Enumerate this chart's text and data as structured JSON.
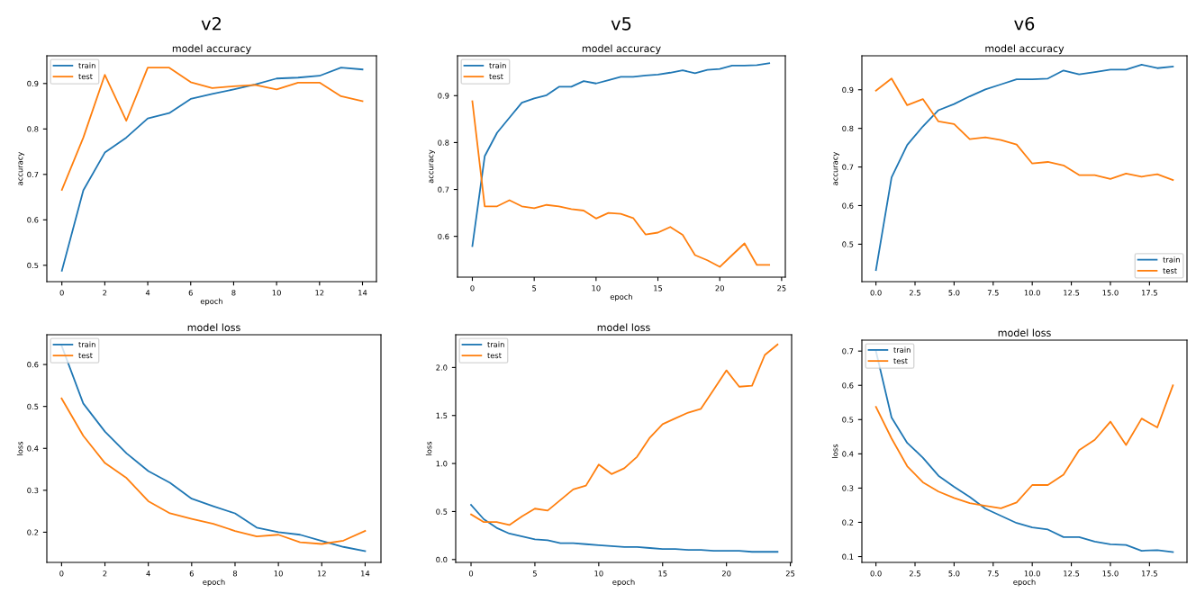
{
  "chart_data": [
    {
      "type": "line",
      "title": "v2",
      "subtitle": "model accuracy",
      "xlabel": "epoch",
      "ylabel": "accuracy",
      "x": [
        0,
        1,
        2,
        3,
        4,
        5,
        6,
        7,
        8,
        9,
        10,
        11,
        12,
        13,
        14
      ],
      "xlim": [
        -0.7,
        14.65
      ],
      "xticks": [
        0,
        2,
        4,
        6,
        8,
        10,
        12,
        14
      ],
      "ylim": [
        0.464,
        0.961
      ],
      "yticks": [
        0.5,
        0.6,
        0.7,
        0.8,
        0.9
      ],
      "legend": "upper left",
      "grid": false,
      "series": [
        {
          "name": "train",
          "color": "#1f77b4",
          "values": [
            0.488,
            0.665,
            0.748,
            0.781,
            0.823,
            0.835,
            0.866,
            0.877,
            0.887,
            0.898,
            0.911,
            0.913,
            0.917,
            0.935,
            0.931
          ]
        },
        {
          "name": "test",
          "color": "#ff7f0e",
          "values": [
            0.666,
            0.781,
            0.919,
            0.818,
            0.935,
            0.935,
            0.903,
            0.89,
            0.894,
            0.897,
            0.887,
            0.902,
            0.902,
            0.872,
            0.861
          ]
        }
      ]
    },
    {
      "type": "line",
      "title": "v5",
      "subtitle": "model accuracy",
      "xlabel": "epoch",
      "ylabel": "accuracy",
      "x": [
        0,
        1,
        2,
        3,
        4,
        5,
        6,
        7,
        8,
        9,
        10,
        11,
        12,
        13,
        14,
        15,
        16,
        17,
        18,
        19,
        20,
        21,
        22,
        23,
        24
      ],
      "xlim": [
        -1.2,
        25.3
      ],
      "xticks": [
        0,
        5,
        10,
        15,
        20,
        25
      ],
      "ylim": [
        0.513,
        0.985
      ],
      "yticks": [
        0.6,
        0.7,
        0.8,
        0.9
      ],
      "legend": "upper left",
      "grid": false,
      "series": [
        {
          "name": "train",
          "color": "#1f77b4",
          "values": [
            0.579,
            0.771,
            0.821,
            0.853,
            0.885,
            0.894,
            0.901,
            0.919,
            0.919,
            0.931,
            0.926,
            0.933,
            0.94,
            0.94,
            0.943,
            0.945,
            0.949,
            0.954,
            0.948,
            0.955,
            0.957,
            0.964,
            0.964,
            0.965,
            0.969
          ]
        },
        {
          "name": "test",
          "color": "#ff7f0e",
          "values": [
            0.888,
            0.664,
            0.664,
            0.677,
            0.664,
            0.66,
            0.667,
            0.664,
            0.658,
            0.655,
            0.638,
            0.65,
            0.648,
            0.639,
            0.604,
            0.608,
            0.62,
            0.603,
            0.56,
            0.549,
            0.535,
            0.56,
            0.585,
            0.539,
            0.539
          ]
        }
      ]
    },
    {
      "type": "line",
      "title": "v6",
      "subtitle": "model accuracy",
      "ylabel": "accuracy",
      "x": [
        0,
        1,
        2,
        3,
        4,
        5,
        6,
        7,
        8,
        9,
        10,
        11,
        12,
        13,
        14,
        15,
        16,
        17,
        18,
        19
      ],
      "xlim": [
        -0.9,
        19.9
      ],
      "xticks": [
        {
          "value": 0,
          "label": "0.0"
        },
        {
          "value": 2.5,
          "label": "2.5"
        },
        {
          "value": 5,
          "label": "5.0"
        },
        {
          "value": 7.5,
          "label": "7.5"
        },
        {
          "value": 10,
          "label": "10.0"
        },
        {
          "value": 12.5,
          "label": "12.5"
        },
        {
          "value": 15,
          "label": "15.0"
        },
        {
          "value": 17.5,
          "label": "17.5"
        }
      ],
      "ylim": [
        0.403,
        0.988
      ],
      "yticks": [
        0.5,
        0.6,
        0.7,
        0.8,
        0.9
      ],
      "legend": "lower right",
      "grid": false,
      "series": [
        {
          "name": "train",
          "color": "#1f77b4",
          "values": [
            0.433,
            0.673,
            0.757,
            0.805,
            0.847,
            0.863,
            0.883,
            0.901,
            0.914,
            0.927,
            0.927,
            0.929,
            0.95,
            0.94,
            0.946,
            0.952,
            0.952,
            0.965,
            0.956,
            0.96
          ]
        },
        {
          "name": "test",
          "color": "#ff7f0e",
          "values": [
            0.898,
            0.929,
            0.86,
            0.876,
            0.818,
            0.811,
            0.772,
            0.777,
            0.77,
            0.758,
            0.709,
            0.713,
            0.704,
            0.679,
            0.679,
            0.669,
            0.683,
            0.675,
            0.681,
            0.666
          ]
        }
      ]
    },
    {
      "type": "line",
      "subtitle": "model loss",
      "xlabel": "epoch",
      "ylabel": "loss",
      "x": [
        0,
        1,
        2,
        3,
        4,
        5,
        6,
        7,
        8,
        9,
        10,
        11,
        12,
        13,
        14
      ],
      "xlim": [
        -0.68,
        14.73
      ],
      "xticks": [
        0,
        2,
        4,
        6,
        8,
        10,
        12,
        14
      ],
      "ylim": [
        0.128,
        0.671
      ],
      "yticks": [
        0.2,
        0.3,
        0.4,
        0.5,
        0.6
      ],
      "legend": "upper left",
      "grid": false,
      "series": [
        {
          "name": "train",
          "color": "#1f77b4",
          "values": [
            0.645,
            0.507,
            0.44,
            0.388,
            0.346,
            0.318,
            0.28,
            0.262,
            0.245,
            0.211,
            0.2,
            0.194,
            0.179,
            0.165,
            0.155
          ]
        },
        {
          "name": "test",
          "color": "#ff7f0e",
          "values": [
            0.519,
            0.43,
            0.365,
            0.329,
            0.274,
            0.245,
            0.232,
            0.22,
            0.203,
            0.19,
            0.194,
            0.176,
            0.172,
            0.18,
            0.203
          ]
        }
      ]
    },
    {
      "type": "line",
      "subtitle": "model loss",
      "xlabel": "epoch",
      "ylabel": "loss",
      "x": [
        0,
        1,
        2,
        3,
        4,
        5,
        6,
        7,
        8,
        9,
        10,
        11,
        12,
        13,
        14,
        15,
        16,
        17,
        18,
        19,
        20,
        21,
        22,
        23,
        24
      ],
      "xlim": [
        -1.2,
        25.1
      ],
      "xticks": [
        0,
        5,
        10,
        15,
        20,
        25
      ],
      "ylim": [
        -0.03,
        2.341
      ],
      "yticks": [
        {
          "value": 0,
          "label": "0.0"
        },
        {
          "value": 0.5,
          "label": "0.5"
        },
        {
          "value": 1,
          "label": "1.0"
        },
        {
          "value": 1.5,
          "label": "1.5"
        },
        {
          "value": 2,
          "label": "2.0"
        }
      ],
      "legend": "upper left",
      "grid": false,
      "series": [
        {
          "name": "train",
          "color": "#1f77b4",
          "values": [
            0.57,
            0.42,
            0.33,
            0.27,
            0.24,
            0.21,
            0.2,
            0.17,
            0.17,
            0.16,
            0.15,
            0.14,
            0.13,
            0.13,
            0.12,
            0.11,
            0.11,
            0.1,
            0.1,
            0.09,
            0.09,
            0.09,
            0.08,
            0.08,
            0.08
          ]
        },
        {
          "name": "test",
          "color": "#ff7f0e",
          "values": [
            0.47,
            0.39,
            0.39,
            0.36,
            0.45,
            0.53,
            0.51,
            0.62,
            0.73,
            0.77,
            0.99,
            0.89,
            0.95,
            1.07,
            1.27,
            1.41,
            1.47,
            1.53,
            1.57,
            1.77,
            1.97,
            1.8,
            1.81,
            2.13,
            2.24
          ]
        }
      ]
    },
    {
      "type": "line",
      "subtitle": "model loss",
      "xlabel": "epoch",
      "ylabel": "loss",
      "x": [
        0,
        1,
        2,
        3,
        4,
        5,
        6,
        7,
        8,
        9,
        10,
        11,
        12,
        13,
        14,
        15,
        16,
        17,
        18,
        19
      ],
      "xlim": [
        -0.9,
        19.9
      ],
      "xticks": [
        {
          "value": 0,
          "label": "0.0"
        },
        {
          "value": 2.5,
          "label": "2.5"
        },
        {
          "value": 5,
          "label": "5.0"
        },
        {
          "value": 7.5,
          "label": "7.5"
        },
        {
          "value": 10,
          "label": "10.0"
        },
        {
          "value": 12.5,
          "label": "12.5"
        },
        {
          "value": 15,
          "label": "15.0"
        },
        {
          "value": 17.5,
          "label": "17.5"
        }
      ],
      "ylim": [
        0.083,
        0.732
      ],
      "yticks": [
        0.1,
        0.2,
        0.3,
        0.4,
        0.5,
        0.6,
        0.7
      ],
      "legend": "upper left",
      "grid": false,
      "series": [
        {
          "name": "train",
          "color": "#1f77b4",
          "values": [
            0.7,
            0.506,
            0.432,
            0.389,
            0.336,
            0.304,
            0.274,
            0.24,
            0.219,
            0.198,
            0.185,
            0.179,
            0.157,
            0.157,
            0.144,
            0.136,
            0.134,
            0.117,
            0.119,
            0.113
          ]
        },
        {
          "name": "test",
          "color": "#ff7f0e",
          "values": [
            0.537,
            0.445,
            0.364,
            0.317,
            0.29,
            0.271,
            0.256,
            0.248,
            0.241,
            0.258,
            0.309,
            0.309,
            0.339,
            0.411,
            0.441,
            0.494,
            0.426,
            0.503,
            0.477,
            0.6
          ]
        }
      ]
    }
  ]
}
